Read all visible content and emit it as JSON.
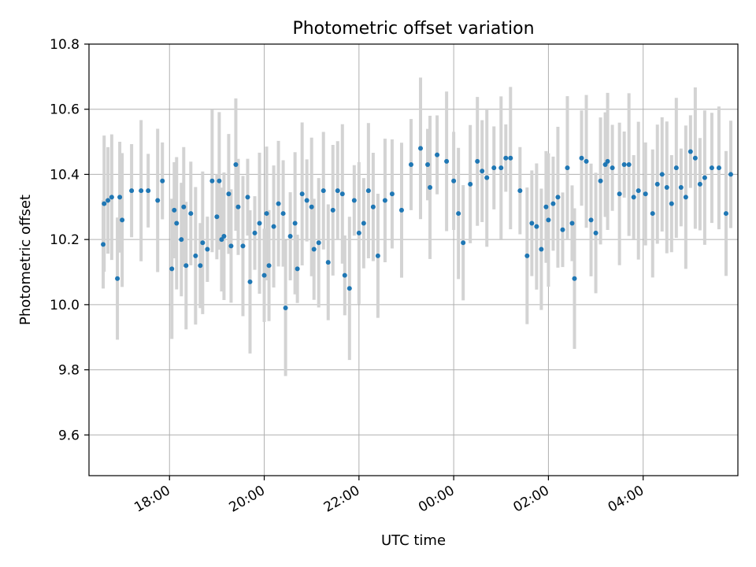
{
  "chart_data": {
    "type": "scatter",
    "title": "Photometric offset variation",
    "xlabel": "UTC time",
    "ylabel": "Photometric offset",
    "x_unit": "hours since 16:00 UTC",
    "xlim": [
      0.3,
      14.0
    ],
    "ylim": [
      9.475,
      10.8
    ],
    "yticks": [
      9.6,
      9.8,
      10.0,
      10.2,
      10.4,
      10.6,
      10.8
    ],
    "ytick_labels": [
      "9.6",
      "9.8",
      "10.0",
      "10.2",
      "10.4",
      "10.6",
      "10.8"
    ],
    "xticks": [
      2,
      4,
      6,
      8,
      10,
      12
    ],
    "xtick_labels": [
      "18:00",
      "20:00",
      "22:00",
      "00:00",
      "02:00",
      "04:00"
    ],
    "grid": true,
    "marker_color": "#1f77b4",
    "errorbar_color": "#d3d3d3",
    "series": [
      {
        "x": [
          0.6,
          0.62,
          0.7,
          0.78,
          0.9,
          0.95,
          1.0,
          1.2,
          1.4,
          1.55,
          1.75,
          1.85,
          2.05,
          2.1,
          2.15,
          2.25,
          2.3,
          2.35,
          2.45,
          2.55,
          2.65,
          2.7,
          2.8,
          2.9,
          3.0,
          3.05,
          3.1,
          3.15,
          3.25,
          3.3,
          3.4,
          3.45,
          3.55,
          3.65,
          3.7,
          3.8,
          3.9,
          4.0,
          4.05,
          4.1,
          4.2,
          4.3,
          4.4,
          4.45,
          4.55,
          4.65,
          4.7,
          4.8,
          4.9,
          5.0,
          5.05,
          5.15,
          5.25,
          5.35,
          5.45,
          5.55,
          5.65,
          5.7,
          5.8,
          5.9,
          6.0,
          6.1,
          6.2,
          6.3,
          6.4,
          6.55,
          6.7,
          6.9,
          7.1,
          7.3,
          7.45,
          7.5,
          7.65,
          7.85,
          8.0,
          8.1,
          8.2,
          8.35,
          8.5,
          8.6,
          8.7,
          8.85,
          9.0,
          9.1,
          9.2,
          9.4,
          9.55,
          9.65,
          9.75,
          9.85,
          9.95,
          10.0,
          10.1,
          10.2,
          10.3,
          10.4,
          10.5,
          10.55,
          10.7,
          10.8,
          10.9,
          11.0,
          11.1,
          11.2,
          11.25,
          11.35,
          11.5,
          11.6,
          11.7,
          11.8,
          11.9,
          12.05,
          12.2,
          12.3,
          12.4,
          12.5,
          12.6,
          12.7,
          12.8,
          12.9,
          13.0,
          13.1,
          13.2,
          13.3,
          13.45,
          13.6,
          13.75,
          13.85
        ],
        "y": [
          10.185,
          10.31,
          10.32,
          10.33,
          10.08,
          10.33,
          10.26,
          10.35,
          10.35,
          10.35,
          10.32,
          10.38,
          10.11,
          10.29,
          10.25,
          10.2,
          10.3,
          10.12,
          10.28,
          10.15,
          10.12,
          10.19,
          10.17,
          10.38,
          10.27,
          10.38,
          10.2,
          10.21,
          10.34,
          10.18,
          10.43,
          10.3,
          10.18,
          10.33,
          10.07,
          10.22,
          10.25,
          10.09,
          10.28,
          10.12,
          10.24,
          10.31,
          10.28,
          9.99,
          10.21,
          10.25,
          10.11,
          10.34,
          10.32,
          10.3,
          10.17,
          10.19,
          10.35,
          10.13,
          10.29,
          10.35,
          10.34,
          10.09,
          10.05,
          10.32,
          10.22,
          10.25,
          10.35,
          10.3,
          10.15,
          10.32,
          10.34,
          10.29,
          10.43,
          10.48,
          10.43,
          10.36,
          10.46,
          10.44,
          10.38,
          10.28,
          10.19,
          10.37,
          10.44,
          10.41,
          10.39,
          10.42,
          10.42,
          10.45,
          10.45,
          10.35,
          10.15,
          10.25,
          10.24,
          10.17,
          10.3,
          10.26,
          10.31,
          10.33,
          10.23,
          10.42,
          10.25,
          10.08,
          10.45,
          10.44,
          10.26,
          10.22,
          10.38,
          10.43,
          10.44,
          10.42,
          10.34,
          10.43,
          10.43,
          10.33,
          10.35,
          10.34,
          10.28,
          10.37,
          10.4,
          10.36,
          10.31,
          10.42,
          10.36,
          10.33,
          10.47,
          10.45,
          10.37,
          10.39,
          10.42,
          10.42,
          10.28,
          10.4
        ]
      }
    ]
  }
}
